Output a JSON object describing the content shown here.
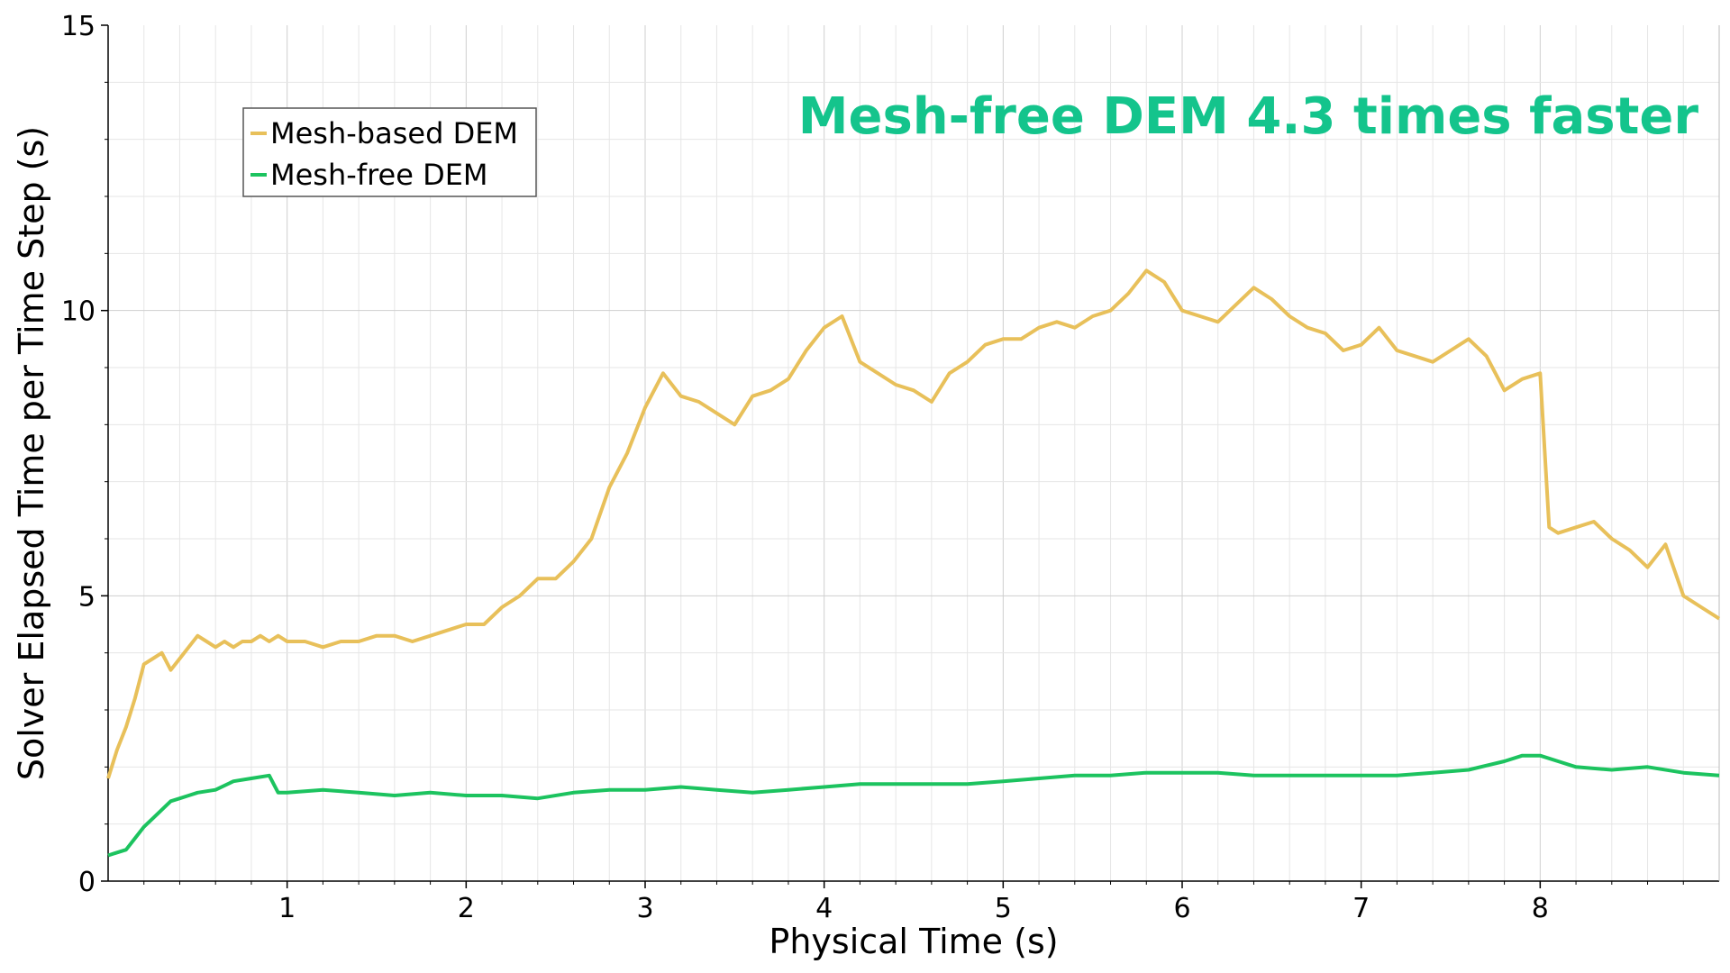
{
  "chart_data": {
    "type": "line",
    "title": "",
    "xlabel": "Physical Time (s)",
    "ylabel": "Solver Elapsed Time per Time Step (s)",
    "xlim": [
      0,
      9.0
    ],
    "ylim": [
      0,
      15
    ],
    "xticks": [
      1,
      2,
      3,
      4,
      5,
      6,
      7,
      8
    ],
    "xtick_labels": [
      "1",
      "2",
      "3",
      "4",
      "5",
      "6",
      "7",
      "8"
    ],
    "yticks": [
      0,
      5,
      10,
      15
    ],
    "ytick_labels": [
      "0",
      "5",
      "10",
      "15"
    ],
    "grid": true,
    "minor_grid": true,
    "legend_position": "upper-left",
    "annotation": {
      "text": "Mesh-free DEM 4.3 times faster",
      "color": "#14c48c",
      "position": "top-right"
    },
    "series": [
      {
        "name": "Mesh-based DEM",
        "color": "#e8c05a",
        "x": [
          0.0,
          0.05,
          0.1,
          0.15,
          0.2,
          0.25,
          0.3,
          0.35,
          0.4,
          0.45,
          0.5,
          0.55,
          0.6,
          0.65,
          0.7,
          0.75,
          0.8,
          0.85,
          0.9,
          0.95,
          1.0,
          1.1,
          1.2,
          1.3,
          1.4,
          1.5,
          1.6,
          1.7,
          1.8,
          1.9,
          2.0,
          2.1,
          2.2,
          2.3,
          2.4,
          2.5,
          2.6,
          2.7,
          2.8,
          2.9,
          3.0,
          3.1,
          3.2,
          3.3,
          3.4,
          3.5,
          3.6,
          3.7,
          3.8,
          3.9,
          4.0,
          4.1,
          4.2,
          4.3,
          4.4,
          4.5,
          4.6,
          4.7,
          4.8,
          4.9,
          5.0,
          5.1,
          5.2,
          5.3,
          5.4,
          5.5,
          5.6,
          5.7,
          5.8,
          5.9,
          6.0,
          6.1,
          6.2,
          6.3,
          6.4,
          6.5,
          6.6,
          6.7,
          6.8,
          6.9,
          7.0,
          7.1,
          7.2,
          7.3,
          7.4,
          7.5,
          7.6,
          7.7,
          7.8,
          7.9,
          8.0,
          8.05,
          8.1,
          8.2,
          8.3,
          8.4,
          8.5,
          8.6,
          8.7,
          8.8,
          8.9,
          9.0
        ],
        "values": [
          1.8,
          2.3,
          2.7,
          3.2,
          3.8,
          3.9,
          4.0,
          3.7,
          3.9,
          4.1,
          4.3,
          4.2,
          4.1,
          4.2,
          4.1,
          4.2,
          4.2,
          4.3,
          4.2,
          4.3,
          4.2,
          4.2,
          4.1,
          4.2,
          4.2,
          4.3,
          4.3,
          4.2,
          4.3,
          4.4,
          4.5,
          4.5,
          4.8,
          5.0,
          5.3,
          5.3,
          5.6,
          6.0,
          6.9,
          7.5,
          8.3,
          8.9,
          8.5,
          8.4,
          8.2,
          8.0,
          8.5,
          8.6,
          8.8,
          9.3,
          9.7,
          9.9,
          9.1,
          8.9,
          8.7,
          8.6,
          8.4,
          8.9,
          9.1,
          9.4,
          9.5,
          9.5,
          9.7,
          9.8,
          9.7,
          9.9,
          10.0,
          10.3,
          10.7,
          10.5,
          10.0,
          9.9,
          9.8,
          10.1,
          10.4,
          10.2,
          9.9,
          9.7,
          9.6,
          9.3,
          9.4,
          9.7,
          9.3,
          9.2,
          9.1,
          9.3,
          9.5,
          9.2,
          8.6,
          8.8,
          8.9,
          6.2,
          6.1,
          6.2,
          6.3,
          6.0,
          5.8,
          5.5,
          5.9,
          5.0,
          4.8,
          4.6
        ]
      },
      {
        "name": "Mesh-free DEM",
        "color": "#1cc35f",
        "x": [
          0.0,
          0.05,
          0.1,
          0.15,
          0.2,
          0.25,
          0.3,
          0.35,
          0.4,
          0.45,
          0.5,
          0.6,
          0.7,
          0.8,
          0.9,
          0.95,
          1.0,
          1.2,
          1.4,
          1.6,
          1.8,
          2.0,
          2.2,
          2.4,
          2.6,
          2.8,
          3.0,
          3.2,
          3.4,
          3.6,
          3.8,
          4.0,
          4.2,
          4.4,
          4.6,
          4.8,
          5.0,
          5.2,
          5.4,
          5.6,
          5.8,
          6.0,
          6.2,
          6.4,
          6.6,
          6.8,
          7.0,
          7.2,
          7.4,
          7.6,
          7.8,
          7.9,
          8.0,
          8.1,
          8.2,
          8.4,
          8.6,
          8.8,
          9.0
        ],
        "values": [
          0.45,
          0.5,
          0.55,
          0.75,
          0.95,
          1.1,
          1.25,
          1.4,
          1.45,
          1.5,
          1.55,
          1.6,
          1.75,
          1.8,
          1.85,
          1.55,
          1.55,
          1.6,
          1.55,
          1.5,
          1.55,
          1.5,
          1.5,
          1.45,
          1.55,
          1.6,
          1.6,
          1.65,
          1.6,
          1.55,
          1.6,
          1.65,
          1.7,
          1.7,
          1.7,
          1.7,
          1.75,
          1.8,
          1.85,
          1.85,
          1.9,
          1.9,
          1.9,
          1.85,
          1.85,
          1.85,
          1.85,
          1.85,
          1.9,
          1.95,
          2.1,
          2.2,
          2.2,
          2.1,
          2.0,
          1.95,
          2.0,
          1.9,
          1.85
        ]
      }
    ]
  }
}
